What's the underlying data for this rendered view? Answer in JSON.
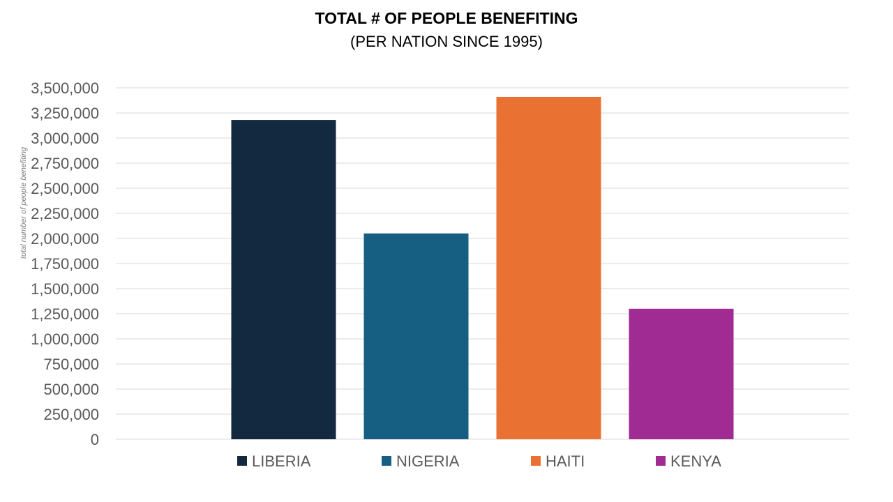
{
  "chart_data": {
    "type": "bar",
    "title": "TOTAL # OF PEOPLE BENEFITING",
    "subtitle": "(PER NATION SINCE 1995)",
    "xlabel": "",
    "ylabel": "total number of people benefiting",
    "ylim": [
      0,
      3500000
    ],
    "ytick_step": 250000,
    "yticks": [
      "0",
      "250,000",
      "500,000",
      "750,000",
      "1,000,000",
      "1,250,000",
      "1,500,000",
      "1,750,000",
      "2,000,000",
      "2,250,000",
      "2,500,000",
      "2,750,000",
      "3,000,000",
      "3,250,000",
      "3,500,000"
    ],
    "grid": true,
    "legend_position": "bottom",
    "series": [
      {
        "name": "LIBERIA",
        "value": 3180000,
        "color": "#12293F"
      },
      {
        "name": "NIGERIA",
        "value": 2050000,
        "color": "#175F82"
      },
      {
        "name": "HAITI",
        "value": 3410000,
        "color": "#E97132"
      },
      {
        "name": "KENYA",
        "value": 1300000,
        "color": "#A02B93"
      }
    ],
    "colors": {
      "grid": "#D9D9D9",
      "tick_text": "#595959",
      "title_text": "#000000",
      "legend_text": "#595959",
      "ylabel_text": "#7F7F7F"
    }
  }
}
